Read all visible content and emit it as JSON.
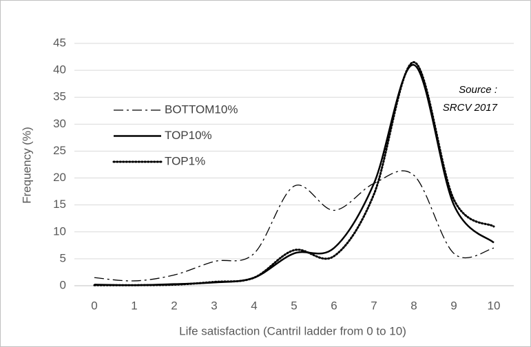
{
  "chart_data": {
    "type": "line",
    "x_label": "Life satisfaction (Cantril ladder from 0 to 10)",
    "y_label": "Frequency (%)",
    "annotation": [
      "Source :",
      "SRCV 2017"
    ],
    "x": [
      0,
      1,
      2,
      3,
      4,
      5,
      6,
      7,
      8,
      9,
      10
    ],
    "xlim": [
      -0.5,
      10.5
    ],
    "ylim": [
      0,
      45
    ],
    "yticks": [
      0,
      5,
      10,
      15,
      20,
      25,
      30,
      35,
      40,
      45
    ],
    "grid": true,
    "legend": "upper-left",
    "series": [
      {
        "name": "BOTTOM10%",
        "color": "#000000",
        "dash": "dash-dot",
        "values": [
          1.5,
          0.9,
          2,
          4.5,
          6,
          18.5,
          14,
          19,
          20.5,
          6,
          7
        ]
      },
      {
        "name": "TOP10%",
        "color": "#000000",
        "dash": "solid",
        "values": [
          0.2,
          0.1,
          0.3,
          0.6,
          1.5,
          6,
          7,
          19,
          41,
          15,
          8
        ]
      },
      {
        "name": "TOP1%",
        "color": "#000000",
        "dash": "dotted",
        "values": [
          0.1,
          0.1,
          0.2,
          0.7,
          1.5,
          6.6,
          5.5,
          17,
          41.5,
          16,
          11
        ]
      }
    ]
  }
}
